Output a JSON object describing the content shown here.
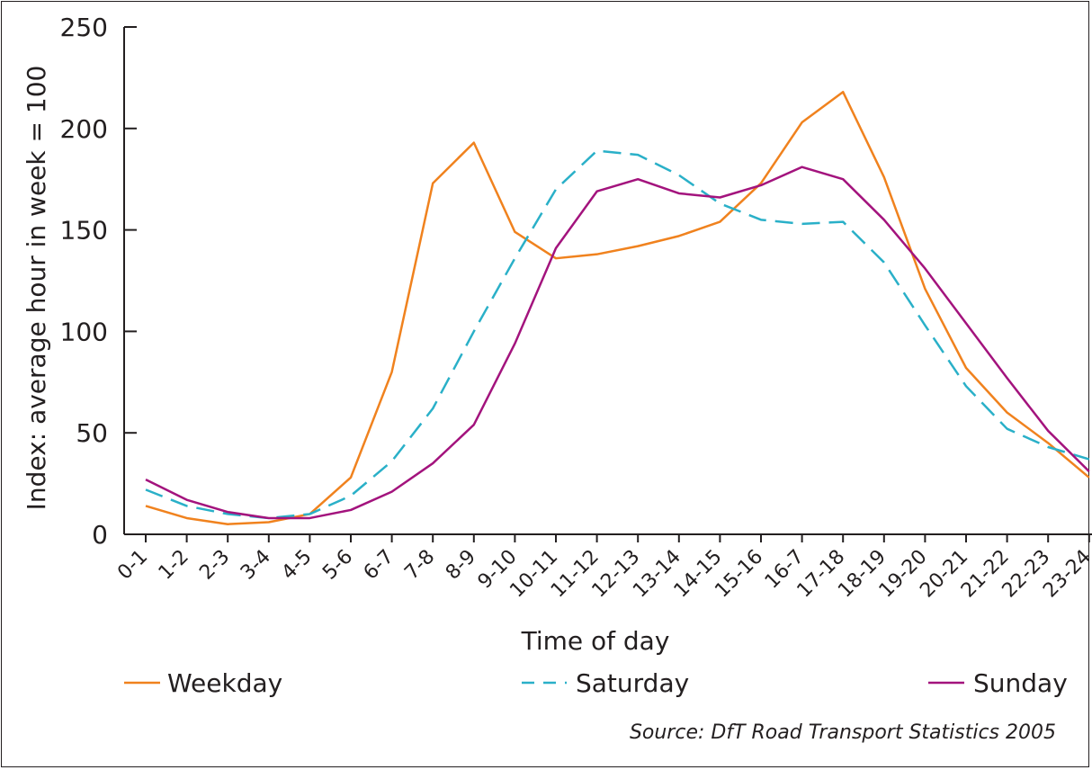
{
  "chart_data": {
    "type": "line",
    "xlabel": "Time of day",
    "ylabel": "Index: average hour in week = 100",
    "ylim": [
      0,
      250
    ],
    "yticks": [
      0,
      50,
      100,
      150,
      200,
      250
    ],
    "grid": false,
    "legend_position": "bottom",
    "categories": [
      "0-1",
      "1-2",
      "2-3",
      "3-4",
      "4-5",
      "5-6",
      "6-7",
      "7-8",
      "8-9",
      "9-10",
      "10-11",
      "11-12",
      "12-13",
      "13-14",
      "14-15",
      "15-16",
      "16-7",
      "17-18",
      "18-19",
      "19-20",
      "20-21",
      "21-22",
      "22-23",
      "23-24"
    ],
    "series": [
      {
        "name": "Weekday",
        "color": "#f0821e",
        "dash": "solid",
        "values": [
          14,
          8,
          5,
          6,
          10,
          28,
          80,
          173,
          193,
          149,
          136,
          138,
          142,
          147,
          154,
          173,
          203,
          218,
          176,
          121,
          82,
          60,
          45,
          28
        ]
      },
      {
        "name": "Saturday",
        "color": "#2ab0c8",
        "dash": "dashed",
        "values": [
          22,
          14,
          10,
          8,
          10,
          19,
          36,
          62,
          100,
          136,
          170,
          189,
          187,
          177,
          163,
          155,
          153,
          154,
          134,
          103,
          73,
          52,
          43,
          37
        ]
      },
      {
        "name": "Sunday",
        "color": "#a3137d",
        "dash": "solid",
        "values": [
          27,
          17,
          11,
          8,
          8,
          12,
          21,
          35,
          54,
          94,
          141,
          169,
          175,
          168,
          166,
          172,
          181,
          175,
          155,
          131,
          104,
          77,
          51,
          31
        ]
      }
    ]
  },
  "source": "Source: DfT Road Transport Statistics 2005"
}
